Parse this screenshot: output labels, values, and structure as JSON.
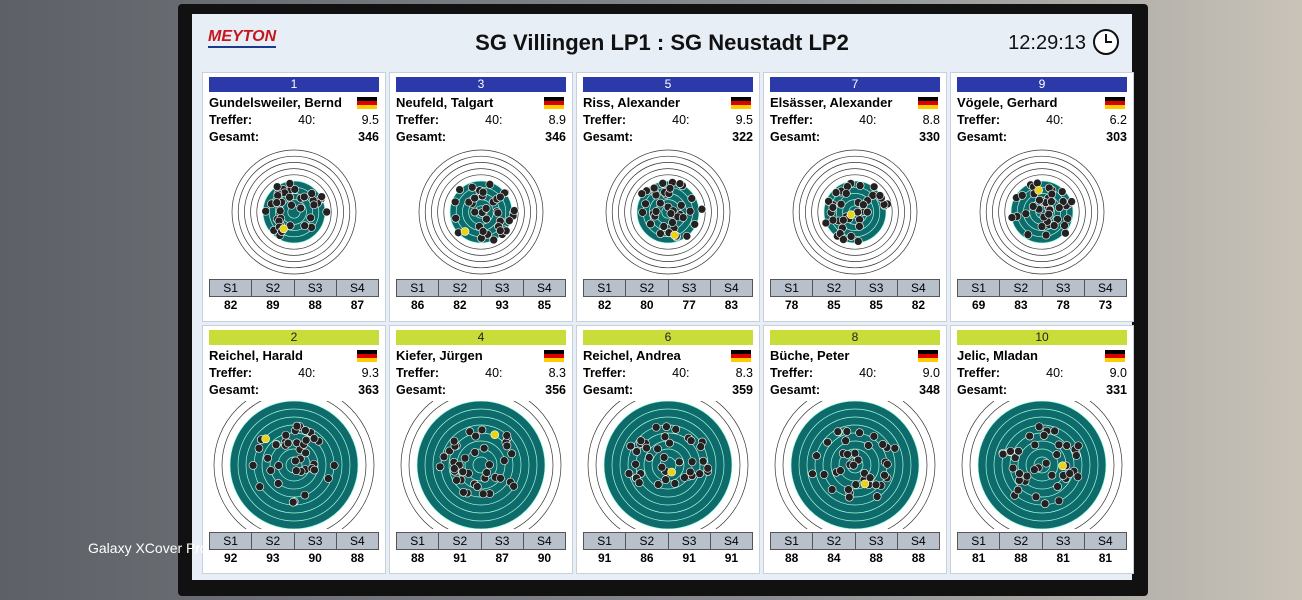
{
  "header": {
    "logo": "MEYTON",
    "title": "SG Villingen LP1 : SG Neustadt LP2",
    "time": "12:29:13"
  },
  "labels": {
    "hits": "Treffer:",
    "total": "Gesamt:",
    "series": [
      "S1",
      "S2",
      "S3",
      "S4"
    ]
  },
  "shooters": [
    {
      "number": 1,
      "name": "Gundelsweiler, Bernd",
      "hits": "40:",
      "last": "9.5",
      "total": 346,
      "series": [
        82,
        89,
        88,
        87
      ]
    },
    {
      "number": 3,
      "name": "Neufeld, Talgart",
      "hits": "40:",
      "last": "8.9",
      "total": 346,
      "series": [
        86,
        82,
        93,
        85
      ]
    },
    {
      "number": 5,
      "name": "Riss, Alexander",
      "hits": "40:",
      "last": "9.5",
      "total": 322,
      "series": [
        82,
        80,
        77,
        83
      ]
    },
    {
      "number": 7,
      "name": "Elsässer, Alexander",
      "hits": "40:",
      "last": "8.8",
      "total": 330,
      "series": [
        78,
        85,
        85,
        82
      ]
    },
    {
      "number": 9,
      "name": "Vögele, Gerhard",
      "hits": "40:",
      "last": "6.2",
      "total": 303,
      "series": [
        69,
        83,
        78,
        73
      ]
    },
    {
      "number": 2,
      "name": "Reichel, Harald",
      "hits": "40:",
      "last": "9.3",
      "total": 363,
      "series": [
        92,
        93,
        90,
        88
      ]
    },
    {
      "number": 4,
      "name": "Kiefer, Jürgen",
      "hits": "40:",
      "last": "8.3",
      "total": 356,
      "series": [
        88,
        91,
        87,
        90
      ]
    },
    {
      "number": 6,
      "name": "Reichel, Andrea",
      "hits": "40:",
      "last": "8.3",
      "total": 359,
      "series": [
        91,
        86,
        91,
        91
      ]
    },
    {
      "number": 8,
      "name": "Büche, Peter",
      "hits": "40:",
      "last": "9.0",
      "total": 348,
      "series": [
        88,
        84,
        88,
        88
      ]
    },
    {
      "number": 10,
      "name": "Jelic, Mladan",
      "hits": "40:",
      "last": "9.0",
      "total": 331,
      "series": [
        81,
        88,
        81,
        81
      ]
    }
  ],
  "watermark": "Galaxy XCover Pro"
}
